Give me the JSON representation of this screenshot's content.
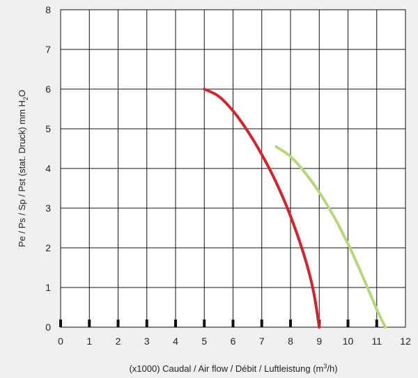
{
  "chart_data": {
    "type": "line",
    "xlabel_parts": [
      "(x1000) Caudal / Air flow / Débit / Luftleistung (m",
      "3",
      "/h)"
    ],
    "ylabel_parts": [
      "Pe / Ps / Sp / Pst (stat. Druck) mm H",
      "2",
      "O"
    ],
    "xlim": [
      0,
      12
    ],
    "ylim": [
      0,
      8
    ],
    "x_ticks": [
      "0",
      "1",
      "2",
      "3",
      "4",
      "5",
      "6",
      "7",
      "8",
      "9",
      "10",
      "11",
      "12"
    ],
    "y_ticks": [
      "0",
      "1",
      "2",
      "3",
      "4",
      "5",
      "6",
      "7",
      "8"
    ],
    "grid": true,
    "series": [
      {
        "color": "#d3232b",
        "x": [
          5.0,
          5.5,
          6.0,
          6.5,
          7.0,
          7.5,
          8.0,
          8.5,
          8.8,
          9.0
        ],
        "y": [
          6.0,
          5.82,
          5.45,
          4.95,
          4.35,
          3.65,
          2.8,
          1.75,
          0.9,
          0.0
        ]
      },
      {
        "color": "#b4d87a",
        "x": [
          7.5,
          8.0,
          8.5,
          9.0,
          9.5,
          10.0,
          10.5,
          11.0,
          11.3
        ],
        "y": [
          4.55,
          4.3,
          3.9,
          3.4,
          2.8,
          2.1,
          1.3,
          0.45,
          0.0
        ]
      }
    ]
  }
}
